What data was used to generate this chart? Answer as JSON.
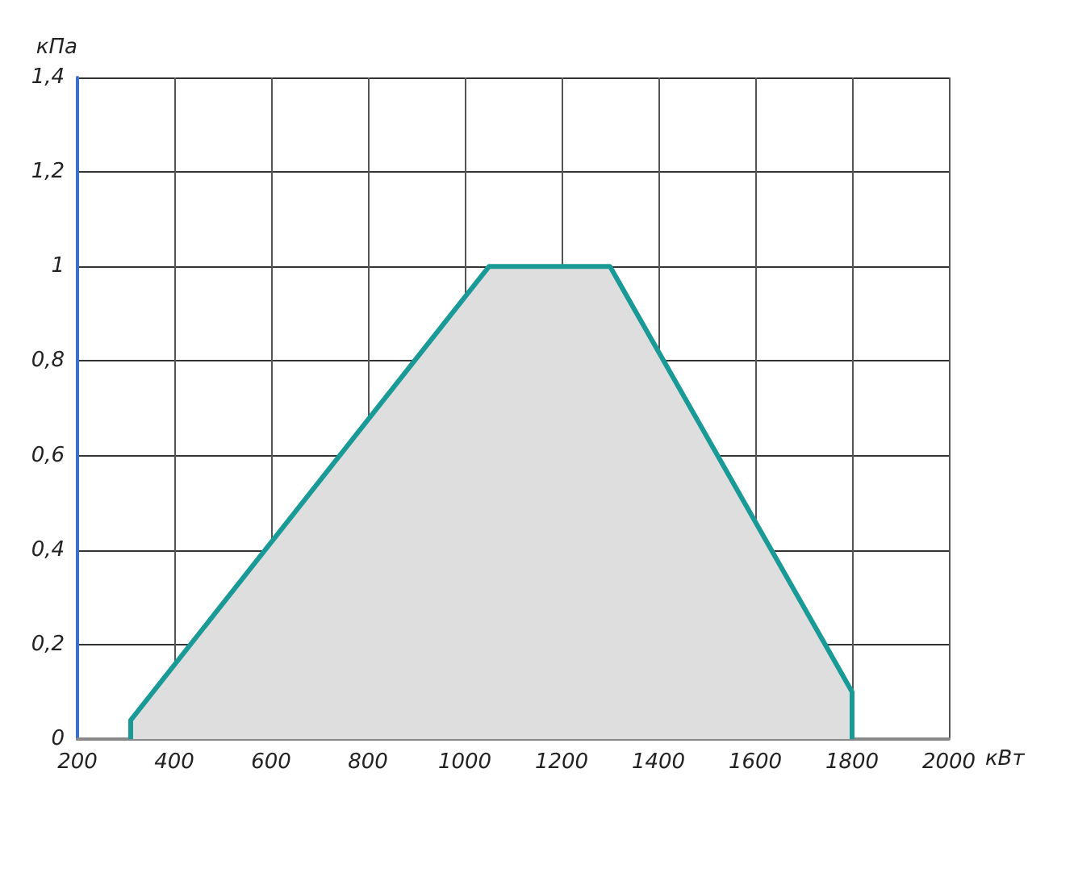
{
  "chart_data": {
    "type": "area",
    "xlabel": "кВт",
    "ylabel": "кПа",
    "x": [
      310,
      310,
      1050,
      1300,
      1800,
      1800
    ],
    "series": [
      {
        "color": "#1a9a96",
        "values": [
          0,
          0.04,
          1,
          1,
          0.1,
          0
        ]
      }
    ],
    "xlim": [
      200,
      2000
    ],
    "xticks": [
      200,
      400,
      600,
      800,
      1000,
      1200,
      1400,
      1600,
      1800,
      2000
    ],
    "ylim": [
      0,
      1.4
    ],
    "yticks": [
      0,
      {
        "value": 0.2,
        "label": "0,2"
      },
      {
        "value": 0.4,
        "label": "0,4"
      },
      {
        "value": 0.6,
        "label": "0,6"
      },
      {
        "value": 0.8,
        "label": "0,8"
      },
      1,
      {
        "value": 1.2,
        "label": "1,2"
      },
      {
        "value": 1.4,
        "label": "1,4"
      }
    ],
    "grid": true,
    "marker": "none",
    "line_style": "solid"
  }
}
